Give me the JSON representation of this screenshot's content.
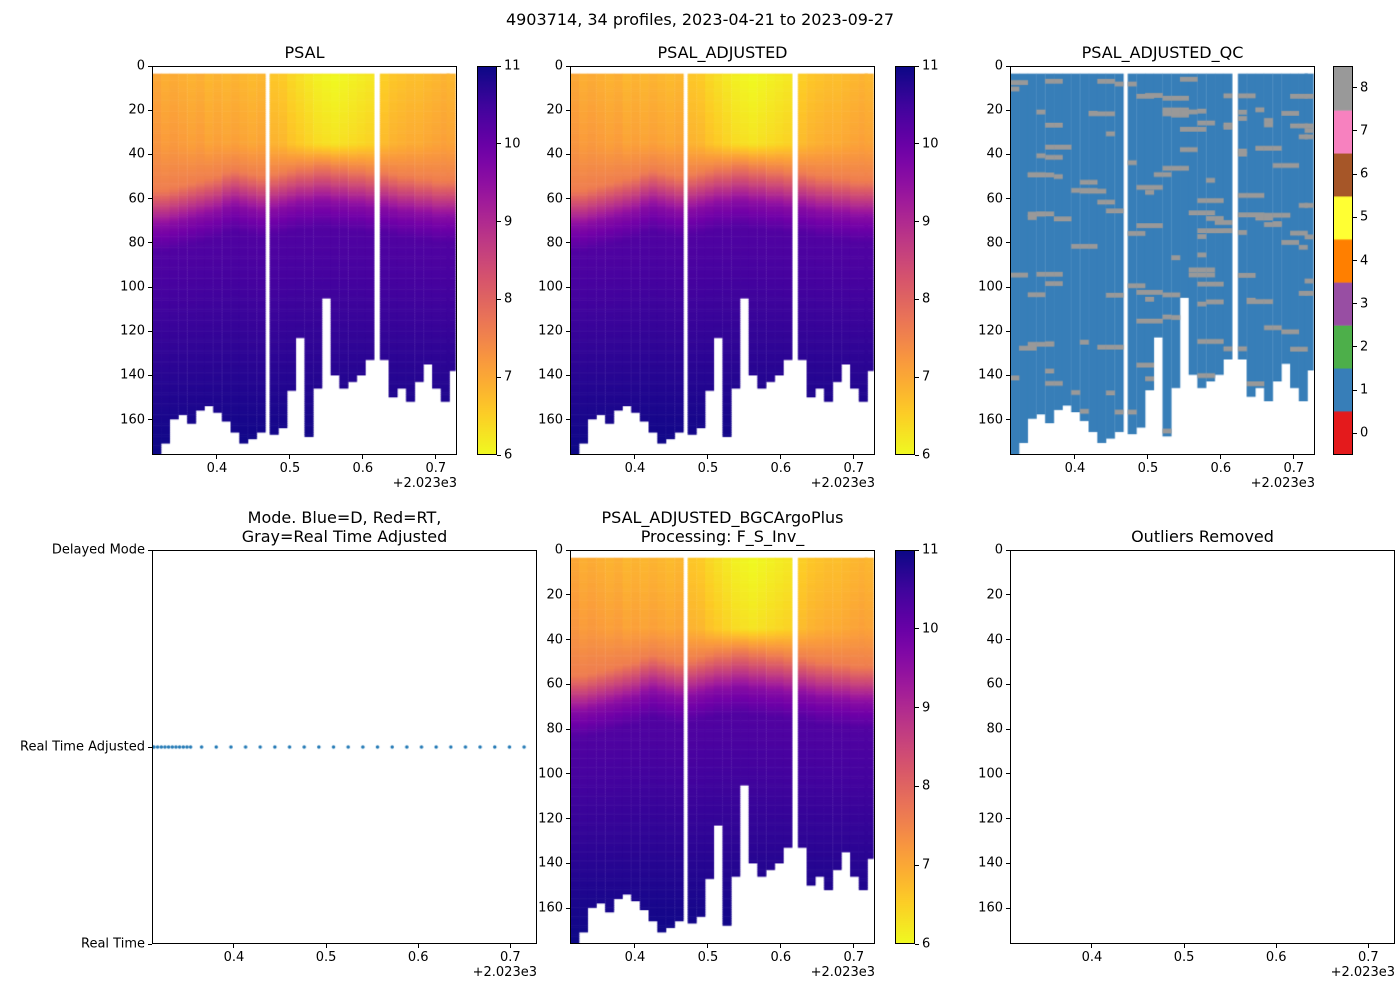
{
  "chart_data": {
    "type": "heatmap",
    "suptitle": "4903714, 34 profiles, 2023-04-21 to 2023-09-27",
    "float_id": "4903714",
    "n_profiles": 34,
    "date_start": "2023-04-21",
    "date_end": "2023-09-27",
    "x_base": 2023,
    "x_offset_label": "+2.023e3",
    "xlim": [
      0.311,
      0.729
    ],
    "xticks": [
      0.4,
      0.5,
      0.6,
      0.7
    ],
    "xtick_labels": [
      "0.4",
      "0.5",
      "0.6",
      "0.7"
    ],
    "ylim_depth": [
      0,
      176
    ],
    "depth_ticks": [
      0,
      20,
      40,
      60,
      80,
      100,
      120,
      140,
      160
    ],
    "ztop": 3,
    "profile_width": 0.012,
    "salinity_clim": [
      6,
      11
    ],
    "salinity_cbar_ticks": [
      6,
      7,
      8,
      9,
      10,
      11
    ],
    "qc_cbar_ticks": [
      0,
      1,
      2,
      3,
      4,
      5,
      6,
      7,
      8
    ],
    "plasma_stops": [
      "#0d0887",
      "#46039f",
      "#7201a8",
      "#9c179e",
      "#bd3786",
      "#d8576b",
      "#ed7953",
      "#fb9f3a",
      "#fdca26",
      "#f0f921"
    ],
    "qc_colors": [
      "#e41a1c",
      "#377eb8",
      "#4daf4a",
      "#984ea3",
      "#ff7f00",
      "#ffff33",
      "#a65628",
      "#f781bf",
      "#999999"
    ],
    "halocline_model": {
      "z": [
        50,
        58,
        66,
        78
      ],
      "s": [
        7.6,
        8.6,
        9.6,
        10.3
      ],
      "deep_depth": 176,
      "deep_s": 11
    },
    "profile_fields": [
      "time_decimal_year_minus_2023",
      "max_depth_m",
      "sal_surface",
      "sal_upper_layer",
      "halocline_shift_m"
    ],
    "profiles": [
      [
        0.316,
        176,
        7.3,
        7.0,
        6
      ],
      [
        0.328,
        171,
        7.1,
        6.9,
        6
      ],
      [
        0.34,
        160,
        7.2,
        6.95,
        5
      ],
      [
        0.352,
        158,
        7.0,
        6.9,
        4
      ],
      [
        0.364,
        162,
        7.1,
        6.85,
        3
      ],
      [
        0.376,
        156,
        7.2,
        6.9,
        2
      ],
      [
        0.388,
        154,
        7.0,
        6.8,
        1
      ],
      [
        0.4,
        157,
        7.1,
        6.85,
        0
      ],
      [
        0.412,
        161,
        7.0,
        6.8,
        -2
      ],
      [
        0.424,
        166,
        7.1,
        6.85,
        -3
      ],
      [
        0.436,
        171,
        7.0,
        6.8,
        -2
      ],
      [
        0.448,
        169,
        7.1,
        6.75,
        -1
      ],
      [
        0.46,
        166,
        7.0,
        6.8,
        0
      ],
      [
        0.478,
        167,
        6.9,
        6.6,
        -1
      ],
      [
        0.49,
        164,
        6.9,
        6.55,
        -2
      ],
      [
        0.502,
        147,
        6.8,
        6.4,
        -3
      ],
      [
        0.514,
        123,
        6.8,
        6.3,
        -4
      ],
      [
        0.526,
        168,
        6.7,
        6.2,
        -4
      ],
      [
        0.538,
        146,
        6.6,
        6.1,
        -5
      ],
      [
        0.55,
        105,
        6.6,
        6.05,
        -5
      ],
      [
        0.562,
        140,
        6.5,
        6.0,
        -4
      ],
      [
        0.574,
        146,
        6.6,
        6.05,
        -4
      ],
      [
        0.586,
        143,
        6.6,
        6.1,
        -3
      ],
      [
        0.598,
        140,
        6.7,
        6.15,
        -3
      ],
      [
        0.61,
        133,
        6.7,
        6.2,
        -2
      ],
      [
        0.63,
        133,
        6.8,
        6.5,
        -2
      ],
      [
        0.642,
        150,
        6.9,
        6.6,
        -1
      ],
      [
        0.654,
        146,
        6.9,
        6.65,
        0
      ],
      [
        0.666,
        152,
        7.0,
        6.7,
        0
      ],
      [
        0.678,
        143,
        6.9,
        6.7,
        1
      ],
      [
        0.69,
        135,
        7.0,
        6.75,
        1
      ],
      [
        0.702,
        146,
        7.0,
        6.8,
        2
      ],
      [
        0.714,
        152,
        7.1,
        6.85,
        2
      ],
      [
        0.722,
        138,
        7.0,
        6.8,
        2
      ]
    ],
    "panels": [
      {
        "id": "psal",
        "type": "heatmap",
        "title": "PSAL",
        "variable": "PSAL"
      },
      {
        "id": "psal_adjusted",
        "type": "heatmap",
        "title": "PSAL_ADJUSTED",
        "variable": "PSAL_ADJUSTED"
      },
      {
        "id": "qc",
        "type": "heatmap-categorical",
        "title": "PSAL_ADJUSTED_QC",
        "variable": "PSAL_ADJUSTED_QC",
        "base_qc": 1,
        "speckle": {
          "qc": 8,
          "count": 140,
          "seed": 11
        }
      },
      {
        "id": "mode",
        "type": "scatter",
        "title_lines": [
          "Mode. Blue=D, Red=RT,",
          "Gray=Real Time Adjusted"
        ],
        "categories": [
          "Delayed Mode",
          "Real Time Adjusted",
          "Real Time"
        ],
        "mode_value": "Real Time Adjusted",
        "dot_color": "#1f77b4",
        "x": [
          0.312,
          0.316,
          0.32,
          0.324,
          0.328,
          0.332,
          0.336,
          0.34,
          0.344,
          0.348,
          0.352,
          0.364,
          0.38,
          0.396,
          0.412,
          0.428,
          0.444,
          0.46,
          0.476,
          0.492,
          0.508,
          0.524,
          0.54,
          0.556,
          0.572,
          0.588,
          0.604,
          0.62,
          0.636,
          0.652,
          0.668,
          0.684,
          0.7,
          0.716
        ]
      },
      {
        "id": "bgc",
        "type": "heatmap",
        "title_lines": [
          "PSAL_ADJUSTED_BGCArgoPlus",
          "Processing: F_S_Inv_"
        ],
        "variable": "PSAL_ADJUSTED_BGCArgoPlus"
      },
      {
        "id": "outliers",
        "type": "empty",
        "title": "Outliers Removed"
      }
    ]
  }
}
